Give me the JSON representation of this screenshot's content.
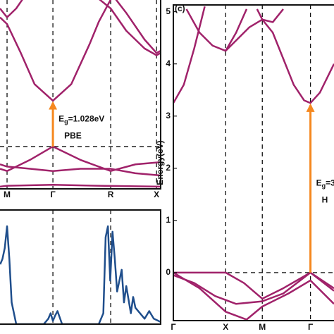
{
  "chart_data": [
    {
      "type": "line",
      "xlim": [
        -0.154,
        3.35
      ],
      "ylim": [
        -0.95,
        3.29
      ],
      "xticks": [
        {
          "value": 0,
          "label": "M"
        },
        {
          "value": 1,
          "label": "Γ"
        },
        {
          "value": 2.26,
          "label": "R"
        },
        {
          "value": 3.26,
          "label": "X"
        }
      ],
      "reference_line": 0,
      "arrow": {
        "x": 1,
        "from": 0,
        "to": 1.028,
        "color": "#f5881f"
      },
      "gap_label": {
        "main": "E",
        "sub": "g",
        "value": "=1.028eV"
      },
      "method": "PBE",
      "series": [
        {
          "color": "#a0226a",
          "x": [
            -0.154,
            0,
            0.3,
            0.6,
            1,
            1.4,
            1.8,
            2.0,
            2.26
          ],
          "values": [
            2.9,
            2.75,
            2.1,
            1.4,
            1.028,
            1.4,
            2.3,
            2.8,
            3.3
          ]
        },
        {
          "color": "#a0226a",
          "x": [
            -0.154,
            0,
            0.2,
            0.4
          ],
          "values": [
            3.1,
            2.9,
            3.1,
            3.4
          ]
        },
        {
          "color": "#a0226a",
          "x": [
            1.9,
            2.26,
            2.6,
            3.0,
            3.26,
            3.35
          ],
          "values": [
            3.4,
            3.1,
            2.6,
            2.2,
            2.05,
            2.1
          ]
        },
        {
          "color": "#a0226a",
          "x": [
            2.3,
            2.6,
            3.0,
            3.26,
            3.35
          ],
          "values": [
            3.4,
            3.0,
            2.4,
            2.1,
            2.15
          ]
        },
        {
          "color": "#a0226a",
          "x": [
            -0.154,
            0,
            0.5,
            1,
            1.6,
            2.26,
            2.8,
            3.35
          ],
          "values": [
            -0.5,
            -0.55,
            -0.3,
            0,
            -0.3,
            -0.55,
            -0.4,
            -0.35
          ]
        },
        {
          "color": "#a0226a",
          "x": [
            -0.154,
            0,
            0.5,
            1,
            1.6,
            2.26,
            2.8,
            3.35
          ],
          "values": [
            -0.4,
            -0.45,
            -0.5,
            -0.55,
            -0.5,
            -0.5,
            -0.6,
            -0.65
          ]
        },
        {
          "color": "#a0226a",
          "x": [
            -0.154,
            0,
            1,
            2,
            3.35
          ],
          "values": [
            -0.9,
            -0.88,
            -0.86,
            -0.88,
            -0.9
          ]
        }
      ]
    },
    {
      "type": "line",
      "xlim": [
        -0.154,
        3.35
      ],
      "ylim": [
        0,
        1.05
      ],
      "vlines": [
        1,
        2.26
      ],
      "series": [
        {
          "color": "#1f4e8c",
          "x": [
            -0.15,
            -0.1,
            -0.05,
            0,
            0.05,
            0.1,
            0.2,
            0.5,
            0.8,
            0.9,
            0.95,
            1,
            1.05,
            1.1,
            1.2,
            1.6,
            2.0,
            2.1,
            2.15,
            2.2,
            2.25,
            2.3,
            2.35,
            2.4,
            2.5,
            2.55,
            2.6,
            2.7,
            2.75,
            2.8,
            2.9,
            3.0,
            3.1,
            3.2,
            3.35
          ],
          "values": [
            0.55,
            0.6,
            0.7,
            0.9,
            0.6,
            0.2,
            0,
            0,
            0,
            0.05,
            0.1,
            0.03,
            0.08,
            0.12,
            0,
            0,
            0,
            0.1,
            0.8,
            0.9,
            0.4,
            0.85,
            0.6,
            0.3,
            0.5,
            0.2,
            0.35,
            0.1,
            0.25,
            0.15,
            0.1,
            0.05,
            0.12,
            0.05,
            0.02
          ]
        }
      ]
    },
    {
      "type": "line",
      "panel_label": "(c)",
      "ylabel": "Energy(eV)",
      "xlim": [
        0,
        3.07
      ],
      "ylim": [
        -0.92,
        5.13
      ],
      "yticks": [
        0,
        1,
        2,
        3,
        4,
        5
      ],
      "xticks": [
        {
          "value": 0,
          "label": "Γ"
        },
        {
          "value": 1,
          "label": "X"
        },
        {
          "value": 1.7,
          "label": "M"
        },
        {
          "value": 2.62,
          "label": "Γ"
        }
      ],
      "reference_line": 0,
      "arrow": {
        "x": 2.62,
        "from": 0,
        "to": 3.25,
        "color": "#f5881f"
      },
      "gap_label": {
        "main": "E",
        "sub": "g",
        "value": "=3"
      },
      "method": "H",
      "series": [
        {
          "color": "#a0226a",
          "x": [
            0,
            0.2,
            0.4,
            0.6
          ],
          "values": [
            3.25,
            3.6,
            4.3,
            5.1
          ]
        },
        {
          "color": "#a0226a",
          "x": [
            0.25,
            0.5,
            0.75,
            1,
            1.2,
            1.45,
            1.7
          ],
          "values": [
            5.05,
            4.6,
            4.35,
            4.25,
            4.45,
            4.7,
            4.85
          ]
        },
        {
          "color": "#a0226a",
          "x": [
            1,
            1.2,
            1.4
          ],
          "values": [
            4.25,
            4.6,
            5.05
          ]
        },
        {
          "color": "#a0226a",
          "x": [
            1.7,
            1.9,
            2.1,
            2.3,
            2.5,
            2.62,
            2.8,
            3.07
          ],
          "values": [
            4.85,
            4.6,
            4.1,
            3.6,
            3.3,
            3.25,
            3.45,
            4.0
          ]
        },
        {
          "color": "#a0226a",
          "x": [
            1.6,
            1.7,
            1.9,
            2.1
          ],
          "values": [
            5.05,
            4.85,
            4.8,
            5.05
          ]
        },
        {
          "color": "#a0226a",
          "x": [
            0,
            0.5,
            1,
            1.35,
            1.7,
            2.1,
            2.62,
            3.07
          ],
          "values": [
            0,
            0,
            0,
            -0.2,
            -0.5,
            -0.3,
            0,
            -0.3
          ]
        },
        {
          "color": "#a0226a",
          "x": [
            0,
            0.4,
            0.8,
            1.2,
            1.7,
            2.1,
            2.62,
            3.07
          ],
          "values": [
            -0.05,
            -0.2,
            -0.45,
            -0.6,
            -0.55,
            -0.4,
            0,
            -0.35
          ]
        },
        {
          "color": "#a0226a",
          "x": [
            0,
            0.5,
            1,
            1.4,
            1.7,
            2.2,
            2.62,
            3.07
          ],
          "values": [
            0,
            -0.3,
            -0.75,
            -0.9,
            -0.65,
            -0.4,
            -0.15,
            -0.6
          ]
        }
      ]
    }
  ]
}
